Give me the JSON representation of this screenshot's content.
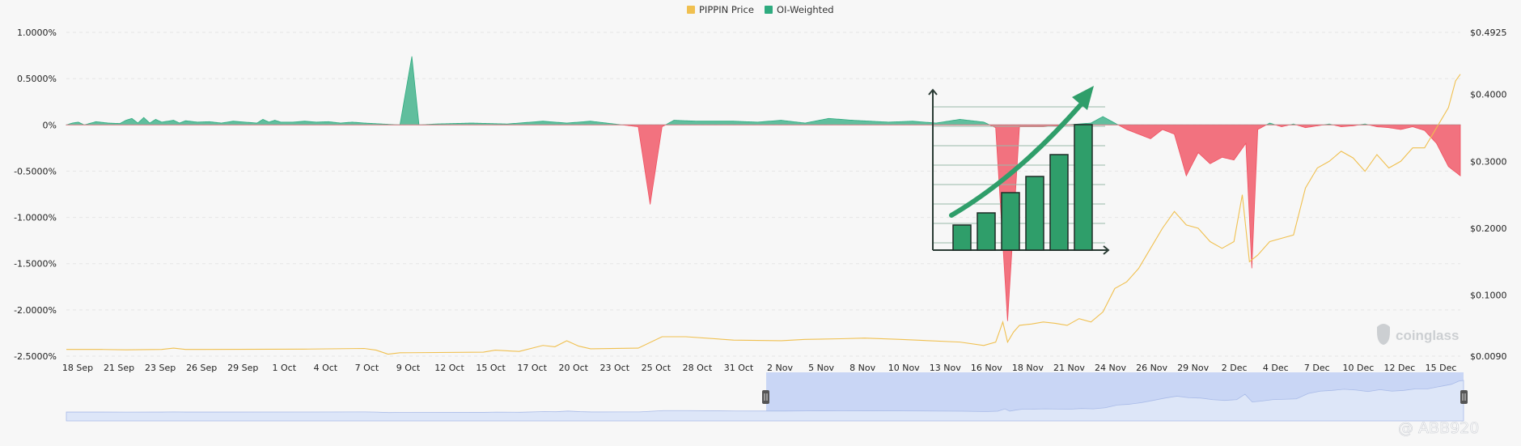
{
  "chart_data": {
    "type": "area",
    "title": "",
    "legend": {
      "position": "top-center",
      "items": [
        {
          "label": "PIPPIN Price",
          "color": "#f0c050"
        },
        {
          "label": "OI-Weighted",
          "color": "#2eab7f"
        }
      ]
    },
    "y_left": {
      "ticks": [
        "1.0000%",
        "0.5000%",
        "0%",
        "-0.5000%",
        "-1.0000%",
        "-1.5000%",
        "-2.0000%",
        "-2.5000%"
      ],
      "range": [
        -2.5,
        1.0
      ],
      "unit": "%"
    },
    "y_right": {
      "ticks": [
        "$0.4925",
        "$0.4000",
        "$0.3000",
        "$0.2000",
        "$0.1000",
        "$0.0090"
      ],
      "range": [
        0.009,
        0.4925
      ]
    },
    "x_ticks": [
      "18 Sep",
      "21 Sep",
      "23 Sep",
      "26 Sep",
      "29 Sep",
      "1 Oct",
      "4 Oct",
      "7 Oct",
      "9 Oct",
      "12 Oct",
      "15 Oct",
      "17 Oct",
      "20 Oct",
      "23 Oct",
      "25 Oct",
      "28 Oct",
      "31 Oct",
      "2 Nov",
      "5 Nov",
      "8 Nov",
      "10 Nov",
      "13 Nov",
      "16 Nov",
      "18 Nov",
      "21 Nov",
      "24 Nov",
      "26 Nov",
      "29 Nov",
      "2 Dec",
      "4 Dec",
      "7 Dec",
      "10 Dec",
      "12 Dec",
      "15 Dec"
    ],
    "series": [
      {
        "name": "PIPPIN Price",
        "axis": "right",
        "color": "#f0c050",
        "points": [
          [
            0,
            0.019
          ],
          [
            3,
            0.019
          ],
          [
            5,
            0.0185
          ],
          [
            8,
            0.019
          ],
          [
            9,
            0.021
          ],
          [
            10,
            0.019
          ],
          [
            20,
            0.0195
          ],
          [
            25,
            0.0205
          ],
          [
            26,
            0.018
          ],
          [
            27,
            0.012
          ],
          [
            28,
            0.014
          ],
          [
            35,
            0.015
          ],
          [
            36,
            0.018
          ],
          [
            38,
            0.016
          ],
          [
            40,
            0.025
          ],
          [
            41,
            0.023
          ],
          [
            42,
            0.032
          ],
          [
            43,
            0.024
          ],
          [
            44,
            0.02
          ],
          [
            48,
            0.021
          ],
          [
            50,
            0.038
          ],
          [
            52,
            0.038
          ],
          [
            56,
            0.033
          ],
          [
            60,
            0.032
          ],
          [
            62,
            0.034
          ],
          [
            65,
            0.035
          ],
          [
            67,
            0.036
          ],
          [
            70,
            0.034
          ],
          [
            75,
            0.03
          ],
          [
            77,
            0.025
          ],
          [
            78,
            0.03
          ],
          [
            78.6,
            0.06
          ],
          [
            79,
            0.03
          ],
          [
            79.5,
            0.045
          ],
          [
            80,
            0.055
          ],
          [
            81,
            0.057
          ],
          [
            82,
            0.06
          ],
          [
            83,
            0.058
          ],
          [
            84,
            0.055
          ],
          [
            85,
            0.065
          ],
          [
            86,
            0.06
          ],
          [
            87,
            0.075
          ],
          [
            88,
            0.11
          ],
          [
            89,
            0.12
          ],
          [
            90,
            0.14
          ],
          [
            91,
            0.17
          ],
          [
            92,
            0.2
          ],
          [
            93,
            0.225
          ],
          [
            94,
            0.205
          ],
          [
            95,
            0.2
          ],
          [
            96,
            0.18
          ],
          [
            97,
            0.17
          ],
          [
            98,
            0.18
          ],
          [
            98.7,
            0.25
          ],
          [
            99.3,
            0.15
          ],
          [
            100,
            0.16
          ],
          [
            101,
            0.18
          ],
          [
            102,
            0.185
          ],
          [
            103,
            0.19
          ],
          [
            104,
            0.26
          ],
          [
            105,
            0.29
          ],
          [
            106,
            0.3
          ],
          [
            107,
            0.315
          ],
          [
            108,
            0.305
          ],
          [
            109,
            0.285
          ],
          [
            110,
            0.31
          ],
          [
            111,
            0.29
          ],
          [
            112,
            0.3
          ],
          [
            113,
            0.32
          ],
          [
            114,
            0.32
          ],
          [
            115,
            0.35
          ],
          [
            116,
            0.38
          ],
          [
            116.6,
            0.42
          ],
          [
            117,
            0.43
          ]
        ]
      },
      {
        "name": "OI-Weighted",
        "axis": "left",
        "unit": "%",
        "points": [
          [
            0,
            0
          ],
          [
            0.5,
            0.02
          ],
          [
            1,
            0.03
          ],
          [
            1.5,
            0.0
          ],
          [
            2.5,
            0.035
          ],
          [
            3.5,
            0.02
          ],
          [
            4.5,
            0.015
          ],
          [
            5,
            0.05
          ],
          [
            5.5,
            0.07
          ],
          [
            6,
            0.02
          ],
          [
            6.5,
            0.08
          ],
          [
            7,
            0.02
          ],
          [
            7.5,
            0.06
          ],
          [
            8,
            0.03
          ],
          [
            9,
            0.05
          ],
          [
            9.5,
            0.02
          ],
          [
            10,
            0.045
          ],
          [
            11,
            0.03
          ],
          [
            12,
            0.035
          ],
          [
            13,
            0.02
          ],
          [
            14,
            0.04
          ],
          [
            15,
            0.03
          ],
          [
            16,
            0.02
          ],
          [
            16.5,
            0.06
          ],
          [
            17,
            0.03
          ],
          [
            17.5,
            0.05
          ],
          [
            18,
            0.03
          ],
          [
            19,
            0.03
          ],
          [
            20,
            0.04
          ],
          [
            21,
            0.03
          ],
          [
            22,
            0.035
          ],
          [
            23,
            0.02
          ],
          [
            24,
            0.03
          ],
          [
            25,
            0.02
          ],
          [
            28,
            0
          ],
          [
            29,
            0.74
          ],
          [
            29.6,
            0
          ],
          [
            31,
            0.01
          ],
          [
            34,
            0.02
          ],
          [
            37,
            0.01
          ],
          [
            40,
            0.04
          ],
          [
            42,
            0.02
          ],
          [
            44,
            0.04
          ],
          [
            46,
            0.01
          ],
          [
            48,
            -0.02
          ],
          [
            49,
            -0.86
          ],
          [
            50,
            -0.02
          ],
          [
            51,
            0.05
          ],
          [
            53,
            0.04
          ],
          [
            56,
            0.04
          ],
          [
            58,
            0.03
          ],
          [
            60,
            0.05
          ],
          [
            62,
            0.02
          ],
          [
            64,
            0.07
          ],
          [
            66,
            0.05
          ],
          [
            69,
            0.03
          ],
          [
            71,
            0.04
          ],
          [
            73,
            0.02
          ],
          [
            75,
            0.06
          ],
          [
            77,
            0.03
          ],
          [
            78,
            -0.03
          ],
          [
            79,
            -2.12
          ],
          [
            80,
            -0.02
          ],
          [
            82,
            -0.02
          ],
          [
            84,
            0.0
          ],
          [
            86,
            0.02
          ],
          [
            87,
            0.09
          ],
          [
            88,
            0.02
          ],
          [
            89,
            -0.05
          ],
          [
            90,
            -0.1
          ],
          [
            91,
            -0.15
          ],
          [
            92,
            -0.05
          ],
          [
            93,
            -0.1
          ],
          [
            94,
            -0.55
          ],
          [
            95,
            -0.3
          ],
          [
            96,
            -0.42
          ],
          [
            97,
            -0.35
          ],
          [
            98,
            -0.38
          ],
          [
            99,
            -0.2
          ],
          [
            99.5,
            -1.55
          ],
          [
            100,
            -0.05
          ],
          [
            101,
            0.02
          ],
          [
            102,
            -0.02
          ],
          [
            103,
            0.01
          ],
          [
            104,
            -0.03
          ],
          [
            105,
            -0.01
          ],
          [
            106,
            0.01
          ],
          [
            107,
            -0.02
          ],
          [
            108,
            -0.01
          ],
          [
            109,
            0.01
          ],
          [
            110,
            -0.02
          ],
          [
            111,
            -0.03
          ],
          [
            112,
            -0.05
          ],
          [
            113,
            -0.02
          ],
          [
            114,
            -0.06
          ],
          [
            115,
            -0.2
          ],
          [
            116,
            -0.45
          ],
          [
            117,
            -0.55
          ]
        ]
      }
    ],
    "x_domain": [
      0,
      117
    ],
    "positive_color": "#2eab7f",
    "negative_color": "#f05060",
    "navigator": {
      "handle_color": "#555555",
      "fill_color": "#dde6f8",
      "selected_fill_color": "#c9d6f5"
    }
  },
  "watermarks": {
    "brand": "coinglass",
    "user": "@ ABB920"
  },
  "illustration": {
    "type": "growth-bar-chart-with-up-arrow",
    "bar_color": "#2f9e6a",
    "arrow_color": "#2f9e6a"
  }
}
